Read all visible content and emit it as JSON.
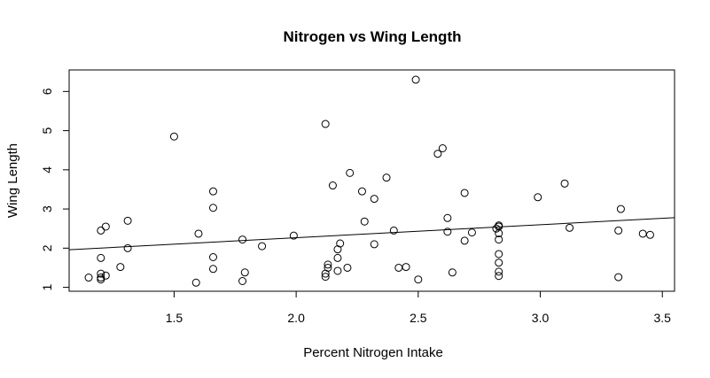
{
  "chart_data": {
    "type": "scatter",
    "title": "Nitrogen vs Wing Length",
    "xlabel": "Percent Nitrogen Intake",
    "ylabel": "Wing Length",
    "xlim": [
      1.07,
      3.55
    ],
    "ylim": [
      0.9,
      6.55
    ],
    "xticks": [
      1.5,
      2.0,
      2.5,
      3.0,
      3.5
    ],
    "xtick_labels": [
      "1.5",
      "2.0",
      "2.5",
      "3.0",
      "3.5"
    ],
    "yticks": [
      1,
      2,
      3,
      4,
      5,
      6
    ],
    "ytick_labels": [
      "1",
      "2",
      "3",
      "4",
      "5",
      "6"
    ],
    "grid": false,
    "legend": "none",
    "marker": "open-circle",
    "trendline": {
      "type": "linear",
      "x": [
        1.07,
        3.55
      ],
      "y": [
        1.96,
        2.78
      ]
    },
    "points": [
      [
        1.15,
        1.25
      ],
      [
        1.2,
        1.35
      ],
      [
        1.2,
        1.2
      ],
      [
        1.2,
        1.25
      ],
      [
        1.2,
        1.75
      ],
      [
        1.2,
        2.45
      ],
      [
        1.22,
        2.55
      ],
      [
        1.22,
        1.3
      ],
      [
        1.28,
        1.52
      ],
      [
        1.31,
        2.0
      ],
      [
        1.31,
        2.7
      ],
      [
        1.5,
        4.85
      ],
      [
        1.59,
        1.12
      ],
      [
        1.6,
        2.37
      ],
      [
        1.66,
        3.45
      ],
      [
        1.66,
        3.03
      ],
      [
        1.66,
        1.77
      ],
      [
        1.66,
        1.47
      ],
      [
        1.78,
        2.22
      ],
      [
        1.78,
        1.16
      ],
      [
        1.79,
        1.38
      ],
      [
        1.86,
        2.05
      ],
      [
        1.99,
        2.32
      ],
      [
        2.12,
        5.17
      ],
      [
        2.12,
        1.27
      ],
      [
        2.12,
        1.35
      ],
      [
        2.13,
        1.5
      ],
      [
        2.13,
        1.58
      ],
      [
        2.15,
        3.6
      ],
      [
        2.17,
        1.97
      ],
      [
        2.17,
        1.42
      ],
      [
        2.17,
        1.75
      ],
      [
        2.18,
        2.12
      ],
      [
        2.21,
        1.5
      ],
      [
        2.22,
        3.92
      ],
      [
        2.27,
        3.45
      ],
      [
        2.28,
        2.68
      ],
      [
        2.32,
        3.26
      ],
      [
        2.32,
        2.1
      ],
      [
        2.37,
        3.8
      ],
      [
        2.4,
        2.45
      ],
      [
        2.42,
        1.5
      ],
      [
        2.45,
        1.52
      ],
      [
        2.49,
        6.3
      ],
      [
        2.5,
        1.2
      ],
      [
        2.58,
        4.41
      ],
      [
        2.6,
        4.55
      ],
      [
        2.62,
        2.77
      ],
      [
        2.62,
        2.42
      ],
      [
        2.64,
        1.38
      ],
      [
        2.69,
        3.41
      ],
      [
        2.69,
        2.19
      ],
      [
        2.72,
        2.4
      ],
      [
        2.82,
        2.5
      ],
      [
        2.83,
        2.58
      ],
      [
        2.83,
        2.55
      ],
      [
        2.83,
        2.38
      ],
      [
        2.83,
        2.22
      ],
      [
        2.83,
        1.85
      ],
      [
        2.83,
        1.63
      ],
      [
        2.83,
        1.4
      ],
      [
        2.83,
        1.29
      ],
      [
        2.99,
        3.3
      ],
      [
        3.1,
        3.65
      ],
      [
        3.12,
        2.52
      ],
      [
        3.32,
        2.45
      ],
      [
        3.32,
        1.26
      ],
      [
        3.33,
        3.0
      ],
      [
        3.42,
        2.37
      ],
      [
        3.45,
        2.34
      ]
    ]
  }
}
